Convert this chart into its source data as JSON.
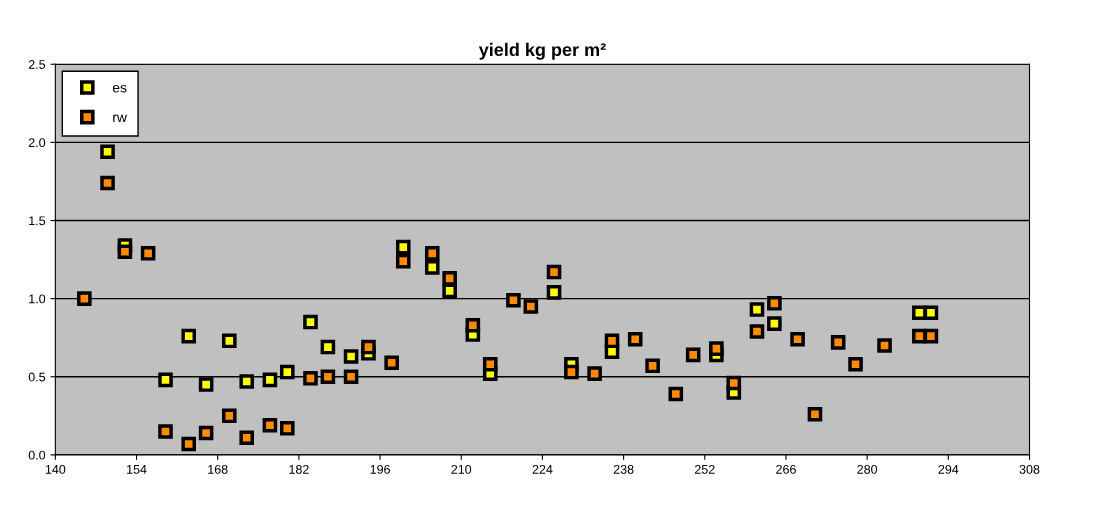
{
  "chart_data": {
    "type": "scatter",
    "title": "yield kg per m²",
    "x": [
      145,
      149,
      152,
      156,
      159,
      163,
      166,
      170,
      173,
      177,
      180,
      184,
      187,
      191,
      194,
      198,
      200,
      205,
      208,
      212,
      215,
      219,
      222,
      226,
      229,
      233,
      236,
      240,
      243,
      247,
      250,
      254,
      257,
      261,
      264,
      268,
      271,
      275,
      278,
      283,
      289,
      291
    ],
    "series": [
      {
        "name": "es",
        "color": "#ffff00",
        "values": [
          null,
          1.94,
          1.34,
          null,
          0.48,
          0.76,
          0.45,
          0.73,
          0.47,
          0.48,
          0.53,
          0.85,
          0.69,
          0.63,
          0.65,
          null,
          1.33,
          1.2,
          1.05,
          0.77,
          0.52,
          null,
          null,
          1.04,
          0.58,
          null,
          0.66,
          null,
          null,
          null,
          null,
          0.64,
          0.4,
          0.93,
          0.84,
          null,
          null,
          null,
          null,
          null,
          0.91,
          0.91
        ]
      },
      {
        "name": "rw",
        "color": "#ff8c00",
        "values": [
          1.0,
          1.74,
          1.3,
          1.29,
          0.15,
          0.07,
          0.14,
          0.25,
          0.11,
          0.19,
          0.17,
          0.49,
          0.5,
          0.5,
          0.69,
          0.59,
          1.24,
          1.29,
          1.13,
          0.83,
          0.58,
          0.99,
          0.95,
          1.17,
          0.53,
          0.52,
          0.73,
          0.74,
          0.57,
          0.39,
          0.64,
          0.68,
          0.46,
          0.79,
          0.97,
          0.74,
          0.26,
          0.72,
          0.58,
          0.7,
          0.76,
          0.76
        ]
      }
    ],
    "xlim": [
      140,
      308
    ],
    "xticks": [
      140,
      154,
      168,
      182,
      196,
      210,
      224,
      238,
      252,
      266,
      280,
      294,
      308
    ],
    "ylim": [
      0,
      2.5
    ],
    "yticks": [
      {
        "value": 0,
        "label": "0.0"
      },
      {
        "value": 0.5,
        "label": "0.5"
      },
      {
        "value": 1.0,
        "label": "1.0"
      },
      {
        "value": 1.5,
        "label": "1.5"
      },
      {
        "value": 2.0,
        "label": "2.0"
      },
      {
        "value": 2.5,
        "label": "2.5"
      }
    ],
    "grid": "y",
    "legend": "top left",
    "marker": "square"
  }
}
